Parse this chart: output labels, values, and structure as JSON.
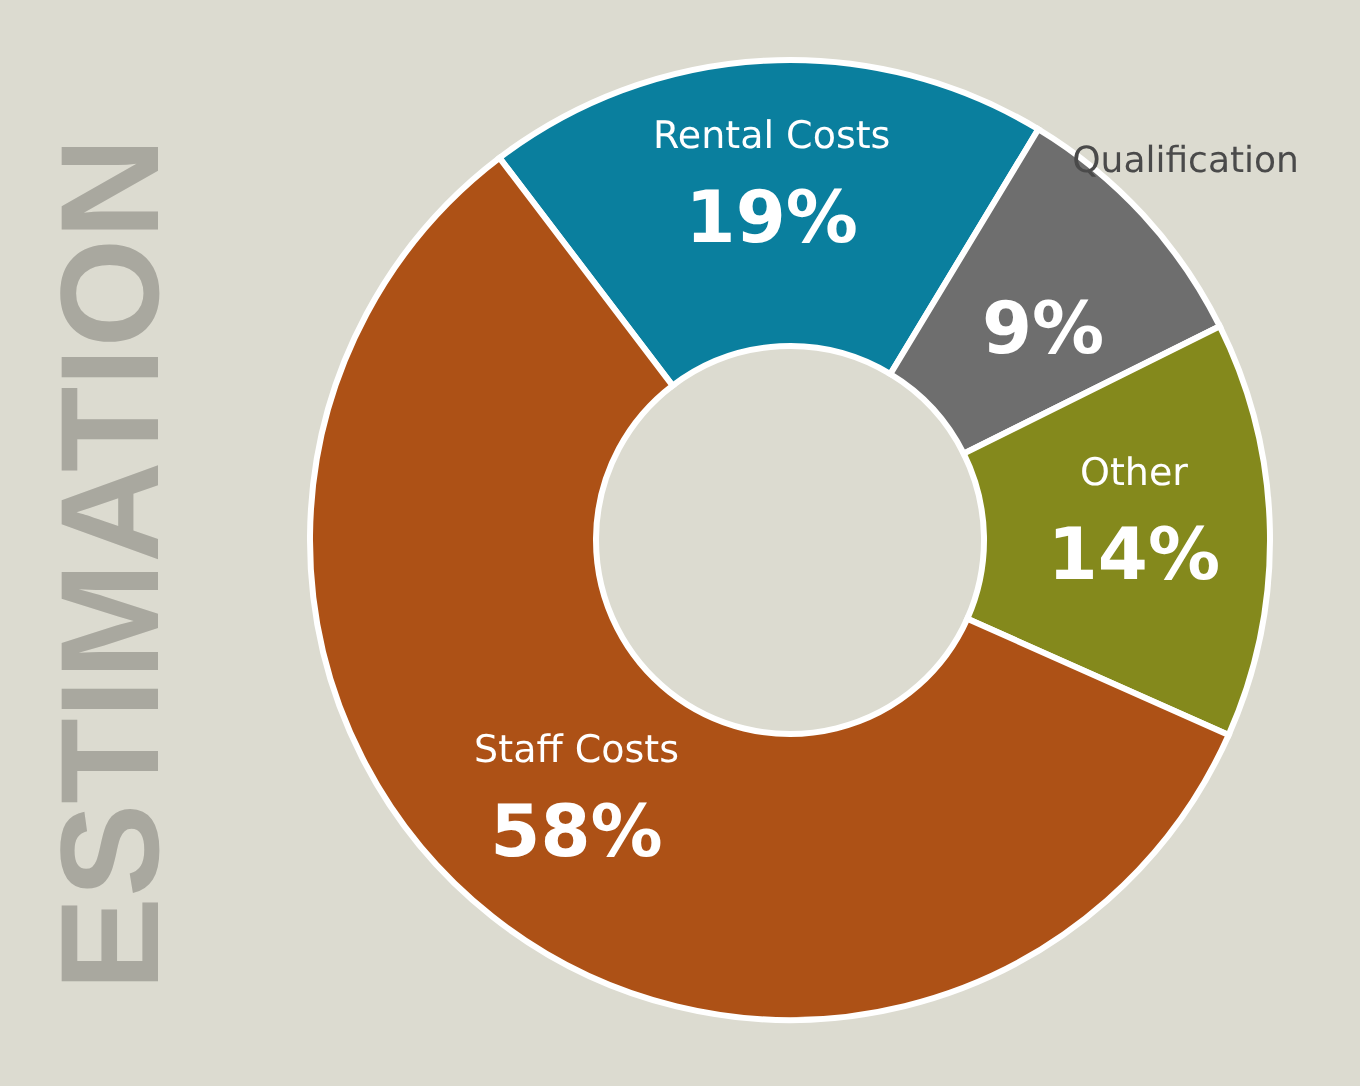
{
  "chart_data": {
    "type": "donut",
    "title": "ESTIMATION",
    "categories": [
      "Rental Costs",
      "Qualification",
      "Other",
      "Staff Costs"
    ],
    "values": [
      19,
      9,
      14,
      58
    ],
    "colors": [
      "#0a7f9e",
      "#6e6e6e",
      "#84891c",
      "#ad5116"
    ],
    "value_labels": [
      "19%",
      "9%",
      "14%",
      "58%"
    ]
  }
}
